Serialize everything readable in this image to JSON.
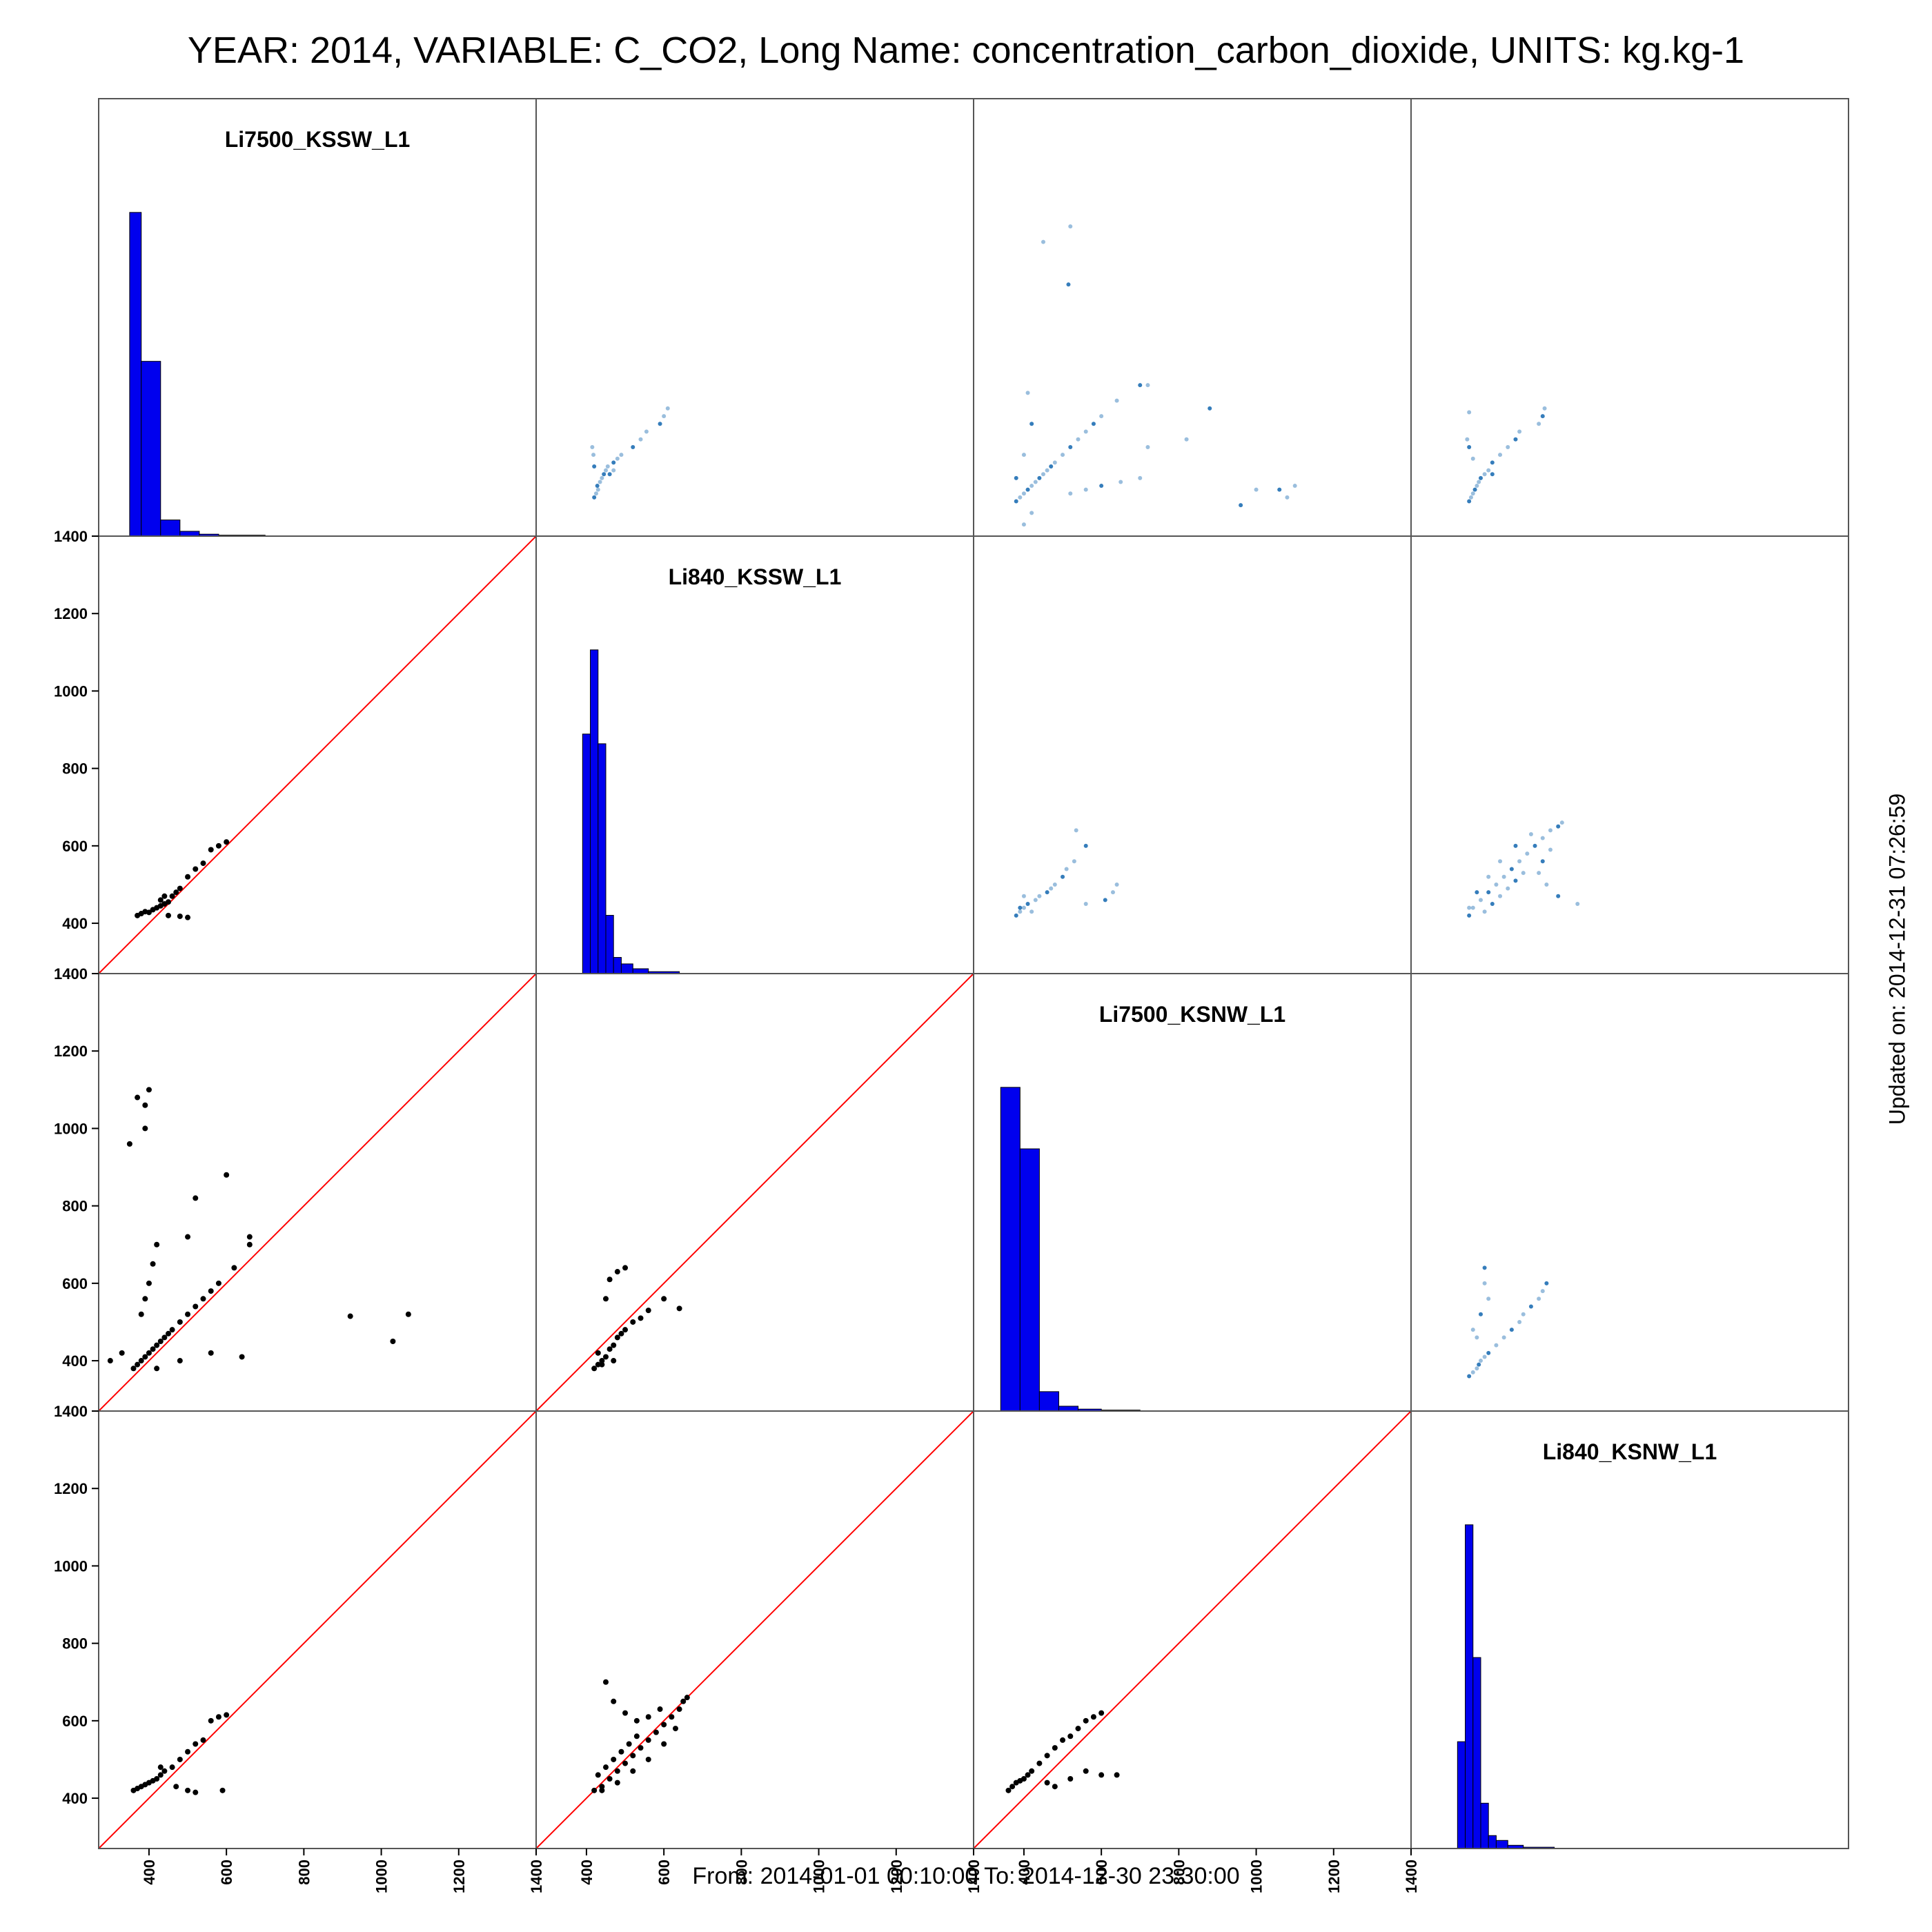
{
  "title": "YEAR: 2014, VARIABLE: C_CO2, Long Name: concentration_carbon_dioxide, UNITS: kg.kg-1",
  "footer": "From: 2014-01-01 00:10:00 To: 2014-12-30 23:30:00",
  "updated": "Updated on: 2014-12-31 07:26:59",
  "colors": {
    "histogram_fill": "#0000ee",
    "scatter_points": "#000000",
    "density_points": "#1f6fb4",
    "one_to_one_line": "#ff0000",
    "panel_border": "#555555"
  },
  "chart_data": {
    "type": "scatter",
    "variables": [
      "Li7500_KSSW_L1",
      "Li840_KSSW_L1",
      "Li7500_KSNW_L1",
      "Li840_KSNW_L1"
    ],
    "axis_range": [
      270,
      1400
    ],
    "ticks": [
      400,
      600,
      800,
      1000,
      1200,
      1400
    ],
    "one_to_one_line": true,
    "lower_panels": "scatter of row variable (y) vs column variable (x) with red 1:1 line",
    "upper_panels": "density-shaded scatter",
    "diagonal_panels": "histogram of variable values",
    "histograms": [
      {
        "variable": "Li7500_KSSW_L1",
        "bins": [
          [
            350,
            380,
            1.0
          ],
          [
            380,
            430,
            0.54
          ],
          [
            430,
            480,
            0.05
          ],
          [
            480,
            530,
            0.015
          ],
          [
            530,
            580,
            0.006
          ],
          [
            580,
            700,
            0.003
          ],
          [
            700,
            1100,
            0.001
          ]
        ]
      },
      {
        "variable": "Li840_KSSW_L1",
        "bins": [
          [
            390,
            410,
            0.74
          ],
          [
            410,
            430,
            1.0
          ],
          [
            430,
            450,
            0.71
          ],
          [
            450,
            470,
            0.18
          ],
          [
            470,
            490,
            0.05
          ],
          [
            490,
            520,
            0.03
          ],
          [
            520,
            560,
            0.015
          ],
          [
            560,
            640,
            0.006
          ]
        ]
      },
      {
        "variable": "Li7500_KSNW_L1",
        "bins": [
          [
            340,
            390,
            1.0
          ],
          [
            390,
            440,
            0.81
          ],
          [
            440,
            490,
            0.06
          ],
          [
            490,
            540,
            0.015
          ],
          [
            540,
            600,
            0.006
          ],
          [
            600,
            700,
            0.003
          ],
          [
            700,
            1100,
            0.001
          ]
        ]
      },
      {
        "variable": "Li840_KSNW_L1",
        "bins": [
          [
            390,
            410,
            0.33
          ],
          [
            410,
            430,
            1.0
          ],
          [
            430,
            450,
            0.59
          ],
          [
            450,
            470,
            0.14
          ],
          [
            470,
            490,
            0.04
          ],
          [
            490,
            520,
            0.025
          ],
          [
            520,
            560,
            0.01
          ],
          [
            560,
            640,
            0.004
          ]
        ]
      }
    ],
    "pairs": [
      {
        "x": "Li7500_KSSW_L1",
        "y": "Li840_KSSW_L1",
        "points": [
          [
            370,
            420
          ],
          [
            380,
            425
          ],
          [
            390,
            430
          ],
          [
            400,
            428
          ],
          [
            410,
            435
          ],
          [
            420,
            440
          ],
          [
            430,
            445
          ],
          [
            440,
            450
          ],
          [
            450,
            455
          ],
          [
            460,
            470
          ],
          [
            470,
            480
          ],
          [
            480,
            490
          ],
          [
            500,
            520
          ],
          [
            520,
            540
          ],
          [
            540,
            555
          ],
          [
            560,
            590
          ],
          [
            580,
            600
          ],
          [
            600,
            610
          ],
          [
            450,
            420
          ],
          [
            480,
            418
          ],
          [
            500,
            415
          ],
          [
            430,
            460
          ],
          [
            440,
            470
          ]
        ]
      },
      {
        "x": "Li7500_KSSW_L1",
        "y": "Li7500_KSNW_L1",
        "points": [
          [
            360,
            380
          ],
          [
            370,
            390
          ],
          [
            380,
            400
          ],
          [
            390,
            410
          ],
          [
            400,
            420
          ],
          [
            410,
            430
          ],
          [
            420,
            440
          ],
          [
            430,
            450
          ],
          [
            440,
            460
          ],
          [
            450,
            470
          ],
          [
            460,
            480
          ],
          [
            480,
            500
          ],
          [
            500,
            520
          ],
          [
            520,
            540
          ],
          [
            540,
            560
          ],
          [
            560,
            580
          ],
          [
            580,
            600
          ],
          [
            620,
            640
          ],
          [
            660,
            700
          ],
          [
            380,
            520
          ],
          [
            390,
            560
          ],
          [
            400,
            600
          ],
          [
            410,
            650
          ],
          [
            420,
            700
          ],
          [
            390,
            1060
          ],
          [
            400,
            1100
          ],
          [
            370,
            1080
          ],
          [
            350,
            960
          ],
          [
            390,
            1000
          ],
          [
            520,
            820
          ],
          [
            600,
            880
          ],
          [
            660,
            720
          ],
          [
            500,
            720
          ],
          [
            920,
            515
          ],
          [
            1070,
            520
          ],
          [
            1030,
            450
          ],
          [
            560,
            420
          ],
          [
            640,
            410
          ],
          [
            480,
            400
          ],
          [
            420,
            380
          ],
          [
            300,
            400
          ],
          [
            330,
            420
          ]
        ]
      },
      {
        "x": "Li840_KSSW_L1",
        "y": "Li7500_KSNW_L1",
        "points": [
          [
            420,
            380
          ],
          [
            430,
            390
          ],
          [
            440,
            400
          ],
          [
            450,
            410
          ],
          [
            460,
            430
          ],
          [
            470,
            440
          ],
          [
            480,
            460
          ],
          [
            490,
            470
          ],
          [
            500,
            480
          ],
          [
            520,
            500
          ],
          [
            540,
            510
          ],
          [
            560,
            530
          ],
          [
            600,
            560
          ],
          [
            640,
            535
          ],
          [
            450,
            560
          ],
          [
            460,
            610
          ],
          [
            480,
            630
          ],
          [
            500,
            640
          ],
          [
            440,
            390
          ],
          [
            430,
            420
          ],
          [
            470,
            400
          ]
        ]
      },
      {
        "x": "Li7500_KSSW_L1",
        "y": "Li840_KSNW_L1",
        "points": [
          [
            360,
            420
          ],
          [
            370,
            425
          ],
          [
            380,
            430
          ],
          [
            390,
            435
          ],
          [
            400,
            440
          ],
          [
            410,
            445
          ],
          [
            420,
            450
          ],
          [
            430,
            460
          ],
          [
            440,
            470
          ],
          [
            460,
            480
          ],
          [
            480,
            500
          ],
          [
            500,
            520
          ],
          [
            520,
            540
          ],
          [
            540,
            550
          ],
          [
            560,
            600
          ],
          [
            580,
            610
          ],
          [
            600,
            615
          ],
          [
            470,
            430
          ],
          [
            500,
            420
          ],
          [
            520,
            415
          ],
          [
            590,
            420
          ],
          [
            430,
            480
          ]
        ]
      },
      {
        "x": "Li840_KSSW_L1",
        "y": "Li840_KSNW_L1",
        "points": [
          [
            420,
            420
          ],
          [
            440,
            430
          ],
          [
            460,
            450
          ],
          [
            480,
            470
          ],
          [
            500,
            490
          ],
          [
            520,
            510
          ],
          [
            540,
            530
          ],
          [
            560,
            550
          ],
          [
            580,
            570
          ],
          [
            600,
            590
          ],
          [
            620,
            610
          ],
          [
            640,
            630
          ],
          [
            650,
            650
          ],
          [
            660,
            660
          ],
          [
            430,
            460
          ],
          [
            450,
            480
          ],
          [
            470,
            500
          ],
          [
            490,
            520
          ],
          [
            510,
            540
          ],
          [
            530,
            560
          ],
          [
            450,
            700
          ],
          [
            470,
            650
          ],
          [
            500,
            620
          ],
          [
            530,
            600
          ],
          [
            560,
            610
          ],
          [
            590,
            630
          ],
          [
            440,
            420
          ],
          [
            480,
            440
          ],
          [
            520,
            470
          ],
          [
            560,
            500
          ],
          [
            600,
            540
          ],
          [
            630,
            580
          ]
        ]
      },
      {
        "x": "Li7500_KSNW_L1",
        "y": "Li840_KSNW_L1",
        "points": [
          [
            360,
            420
          ],
          [
            370,
            430
          ],
          [
            380,
            440
          ],
          [
            390,
            445
          ],
          [
            400,
            450
          ],
          [
            410,
            460
          ],
          [
            420,
            470
          ],
          [
            440,
            490
          ],
          [
            460,
            510
          ],
          [
            480,
            530
          ],
          [
            500,
            550
          ],
          [
            520,
            560
          ],
          [
            540,
            580
          ],
          [
            560,
            600
          ],
          [
            580,
            610
          ],
          [
            600,
            620
          ],
          [
            460,
            440
          ],
          [
            480,
            430
          ],
          [
            520,
            450
          ],
          [
            560,
            470
          ],
          [
            600,
            460
          ],
          [
            640,
            460
          ]
        ]
      }
    ]
  }
}
